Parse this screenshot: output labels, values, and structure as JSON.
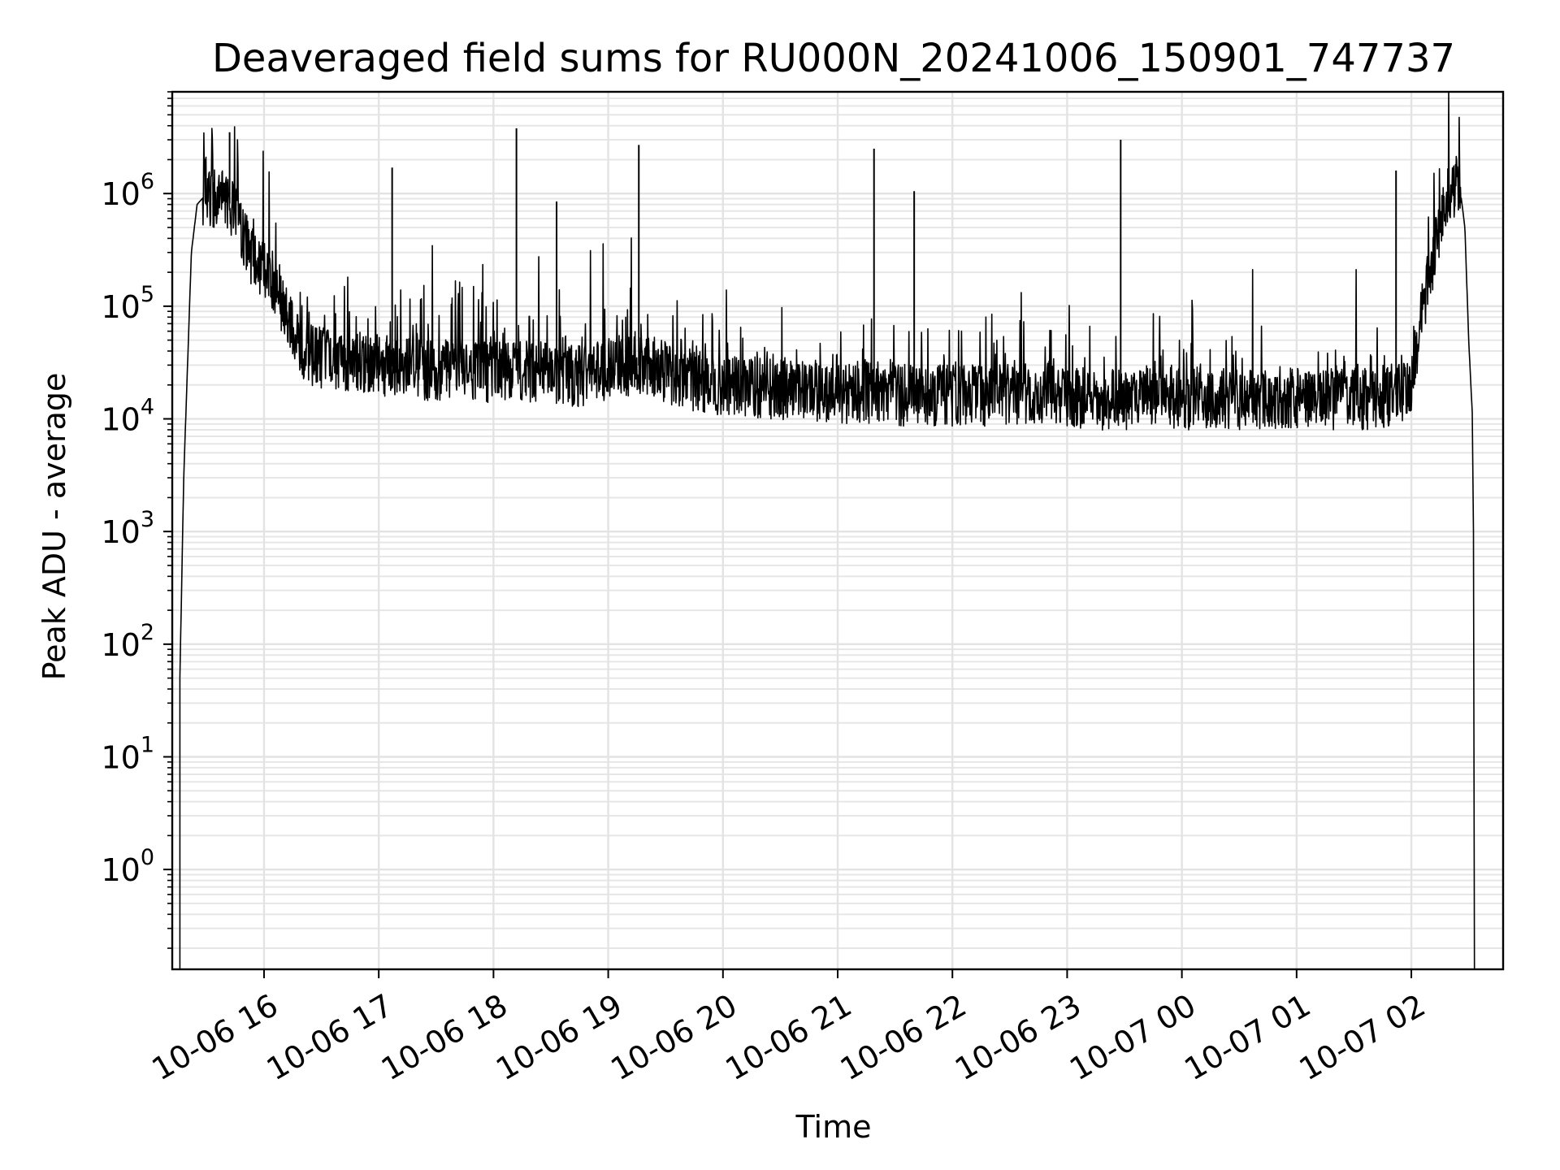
{
  "chart_data": {
    "type": "line",
    "title": "Deaveraged field sums for RU000N_20241006_150901_747737",
    "xlabel": "Time",
    "ylabel": "Peak ADU - average",
    "yscale": "log",
    "ylim": [
      0.13,
      8000000
    ],
    "xlim": [
      "2024-10-06 15:12",
      "2024-10-07 02:48"
    ],
    "grid": "major and minor",
    "x_ticks": [
      "10-06 16",
      "10-06 17",
      "10-06 18",
      "10-06 19",
      "10-06 20",
      "10-06 21",
      "10-06 22",
      "10-06 23",
      "10-07 00",
      "10-07 01",
      "10-07 02"
    ],
    "y_ticks": [
      {
        "base": "10",
        "exp": "0",
        "value": 1
      },
      {
        "base": "10",
        "exp": "1",
        "value": 10
      },
      {
        "base": "10",
        "exp": "2",
        "value": 100
      },
      {
        "base": "10",
        "exp": "3",
        "value": 1000
      },
      {
        "base": "10",
        "exp": "4",
        "value": 10000
      },
      {
        "base": "10",
        "exp": "5",
        "value": 100000
      },
      {
        "base": "10",
        "exp": "6",
        "value": 1000000
      }
    ],
    "line_color": "#000000",
    "series": [
      {
        "name": "",
        "x": [
          "2024-10-06 15:16",
          "2024-10-06 15:18",
          "2024-10-06 15:20",
          "2024-10-06 15:22",
          "2024-10-06 15:25",
          "2024-10-06 15:30",
          "2024-10-06 15:35",
          "2024-10-06 15:40",
          "2024-10-06 15:45",
          "2024-10-06 15:50",
          "2024-10-06 15:55",
          "2024-10-06 16:00",
          "2024-10-06 16:05",
          "2024-10-06 16:10",
          "2024-10-06 16:15",
          "2024-10-06 16:20",
          "2024-10-06 16:30",
          "2024-10-06 16:45",
          "2024-10-06 17:00",
          "2024-10-06 17:15",
          "2024-10-06 17:30",
          "2024-10-06 17:45",
          "2024-10-06 18:00",
          "2024-10-06 18:15",
          "2024-10-06 18:30",
          "2024-10-06 18:45",
          "2024-10-06 19:00",
          "2024-10-06 19:15",
          "2024-10-06 19:30",
          "2024-10-06 19:45",
          "2024-10-06 20:00",
          "2024-10-06 20:15",
          "2024-10-06 20:30",
          "2024-10-06 20:45",
          "2024-10-06 21:00",
          "2024-10-06 21:15",
          "2024-10-06 21:30",
          "2024-10-06 21:45",
          "2024-10-06 22:00",
          "2024-10-06 22:15",
          "2024-10-06 22:30",
          "2024-10-06 22:45",
          "2024-10-06 23:00",
          "2024-10-06 23:15",
          "2024-10-06 23:30",
          "2024-10-06 23:45",
          "2024-10-07 00:00",
          "2024-10-07 00:15",
          "2024-10-07 00:30",
          "2024-10-07 00:45",
          "2024-10-07 01:00",
          "2024-10-07 01:15",
          "2024-10-07 01:30",
          "2024-10-07 01:45",
          "2024-10-07 01:50",
          "2024-10-07 01:55",
          "2024-10-07 02:00",
          "2024-10-07 02:05",
          "2024-10-07 02:10",
          "2024-10-07 02:15",
          "2024-10-07 02:20",
          "2024-10-07 02:25",
          "2024-10-07 02:28",
          "2024-10-07 02:30",
          "2024-10-07 02:32"
        ],
        "y": [
          50,
          3000,
          30000,
          300000,
          800000,
          1000000,
          900000,
          900000,
          700000,
          400000,
          250000,
          200000,
          150000,
          100000,
          60000,
          40000,
          35000,
          32000,
          30000,
          28000,
          27000,
          27000,
          26000,
          27000,
          25000,
          24000,
          28000,
          30000,
          26000,
          22000,
          20000,
          19000,
          18000,
          17000,
          17000,
          17000,
          16000,
          16000,
          16000,
          16000,
          17000,
          16000,
          16000,
          15000,
          15000,
          16000,
          15000,
          15000,
          15000,
          15000,
          15000,
          15000,
          15000,
          15000,
          16000,
          17000,
          20000,
          80000,
          200000,
          500000,
          1000000,
          1300000,
          500000,
          50000,
          10000
        ]
      }
    ],
    "spikes": [
      {
        "x": "2024-10-06 15:42",
        "y": 3500000
      },
      {
        "x": "2024-10-06 17:07",
        "y": 1700000
      },
      {
        "x": "2024-10-06 18:12",
        "y": 3800000
      },
      {
        "x": "2024-10-06 18:33",
        "y": 850000
      },
      {
        "x": "2024-10-06 19:16",
        "y": 2700000
      },
      {
        "x": "2024-10-06 21:19",
        "y": 2500000
      },
      {
        "x": "2024-10-06 21:40",
        "y": 1050000
      },
      {
        "x": "2024-10-06 23:28",
        "y": 3000000
      },
      {
        "x": "2024-10-07 01:52",
        "y": 1600000
      }
    ]
  }
}
